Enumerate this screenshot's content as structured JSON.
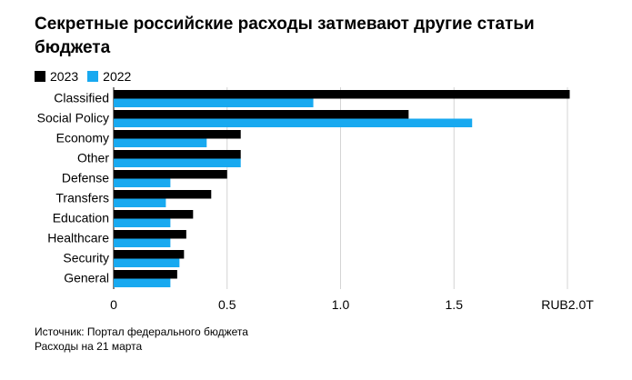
{
  "chart_data": {
    "type": "bar",
    "orientation": "horizontal",
    "title": "Секретные российские расходы затмевают другие статьи бюджета",
    "categories": [
      "Classified",
      "Social Policy",
      "Economy",
      "Other",
      "Defense",
      "Transfers",
      "Education",
      "Healthcare",
      "Security",
      "General"
    ],
    "series": [
      {
        "name": "2023",
        "color": "#000000",
        "values": [
          2.01,
          1.3,
          0.56,
          0.56,
          0.5,
          0.43,
          0.35,
          0.32,
          0.31,
          0.28
        ]
      },
      {
        "name": "2022",
        "color": "#18a9f0",
        "values": [
          0.88,
          1.58,
          0.41,
          0.56,
          0.25,
          0.23,
          0.25,
          0.25,
          0.29,
          0.25
        ]
      }
    ],
    "xlim": [
      0,
      2.0
    ],
    "xticks": [
      {
        "value": 0,
        "label": "0"
      },
      {
        "value": 0.5,
        "label": "0.5"
      },
      {
        "value": 1.0,
        "label": "1.0"
      },
      {
        "value": 1.5,
        "label": "1.5"
      },
      {
        "value": 2.0,
        "label": "RUB2.0T"
      }
    ],
    "gridlines": true,
    "legend_position": "top-left"
  },
  "footer": {
    "source": "Источник: Портал федерального бюджета",
    "note": "Расходы на 21 марта"
  }
}
